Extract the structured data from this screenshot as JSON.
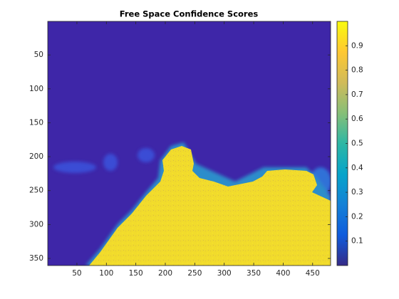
{
  "chart_data": {
    "type": "image",
    "title": "Free Space Confidence Scores",
    "xlim": [
      0.5,
      480.5
    ],
    "xticks": [
      50,
      100,
      150,
      200,
      250,
      300,
      350,
      400,
      450
    ],
    "ylim": [
      0.5,
      360.5
    ],
    "yticks": [
      50,
      100,
      150,
      200,
      250,
      300,
      350
    ],
    "y_reversed": true,
    "colorbar": {
      "clim": [
        0,
        1
      ],
      "ticks": [
        0.1,
        0.2,
        0.3,
        0.4,
        0.5,
        0.6,
        0.7,
        0.8,
        0.9
      ],
      "colormap": [
        "#352a87",
        "#0f5cdd",
        "#1481d6",
        "#06a4ca",
        "#2eb7a4",
        "#87bf77",
        "#d1bb59",
        "#fec832",
        "#f9fb0e"
      ]
    }
  }
}
